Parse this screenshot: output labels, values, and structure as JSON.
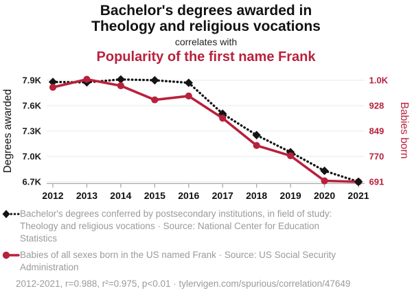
{
  "header": {
    "title_lines": [
      "Bachelor's degrees awarded in",
      "Theology and religious vocations"
    ],
    "connector": "correlates with",
    "subtitle": "Popularity of the first name Frank"
  },
  "colors": {
    "red": "#b8213c",
    "black": "#141414",
    "gray": "#9a9a9a",
    "grid": "#e8e8e8",
    "axis": "#a9a9a9"
  },
  "chart_data": {
    "type": "line",
    "title": "Bachelor's degrees awarded in Theology and religious vocations correlates with Popularity of the first name Frank",
    "categories": [
      "2012",
      "2013",
      "2014",
      "2015",
      "2016",
      "2017",
      "2018",
      "2019",
      "2020",
      "2021"
    ],
    "series": [
      {
        "id": "degrees",
        "name": "Bachelor's degrees conferred by postsecondary institutions, in field of study: Theology and religious vocations",
        "axis": "left",
        "style": "dotted-diamond",
        "color": "#141414",
        "values": [
          7880,
          7875,
          7910,
          7900,
          7870,
          7505,
          7252,
          7050,
          6830,
          6700
        ]
      },
      {
        "id": "frank",
        "name": "Babies of all sexes born in the US named Frank",
        "axis": "right",
        "style": "solid-circle",
        "color": "#b8213c",
        "values": [
          985,
          1010,
          990,
          946,
          958,
          889,
          804,
          772,
          694,
          691
        ]
      }
    ],
    "left_axis": {
      "label": "Degrees awarded",
      "tick_labels": [
        "7.9K",
        "7.6K",
        "7.3K",
        "7.0K",
        "6.7K"
      ],
      "tick_values": [
        7900,
        7600,
        7300,
        7000,
        6700
      ],
      "range": [
        6700,
        7900
      ]
    },
    "right_axis": {
      "label": "Babies born",
      "tick_labels": [
        "1.0K",
        "928",
        "849",
        "770",
        "691"
      ],
      "tick_values": [
        1007,
        928,
        849,
        770,
        691
      ],
      "range": [
        691,
        1007
      ]
    },
    "grid": true,
    "legend_position": "bottom"
  },
  "legend": {
    "items": [
      {
        "marker": "black-diamond-dotted-line-icon",
        "text": "Bachelor's degrees conferred by postsecondary institutions, in field of study: Theology and religious vocations · Source: National Center for Education Statistics"
      },
      {
        "marker": "red-circle-solid-line-icon",
        "text": "Babies of all sexes born in the US named Frank · Source: US Social Security Administration"
      }
    ],
    "footnote": "2012-2021, r=0.988, r²=0.975, p<0.01 · tylervigen.com/spurious/correlation/47649"
  }
}
